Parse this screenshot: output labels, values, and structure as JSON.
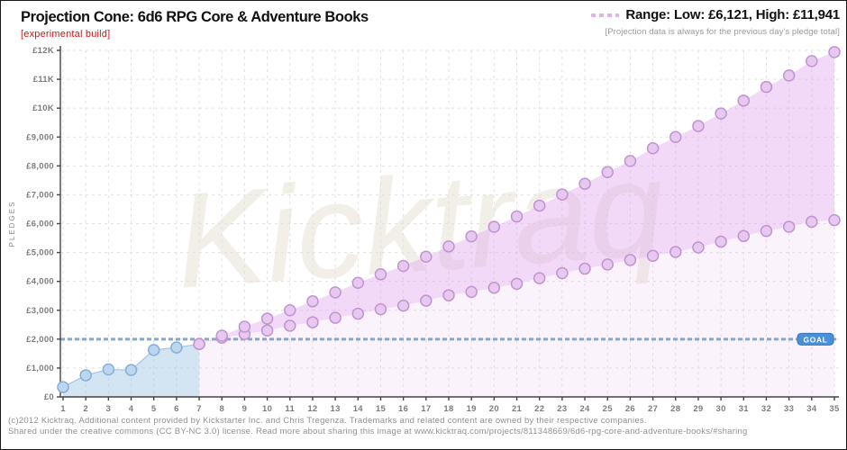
{
  "header": {
    "title": "Projection Cone: 6d6 RPG Core & Adventure Books",
    "experimental": "[experimental build]",
    "range_label": "Range: Low:  £6,121, High:  £11,941",
    "projection_note": "[Projection data is always for the previous day's pledge total]"
  },
  "watermark": "Kicktraq",
  "goal_badge_label": "GOAL",
  "footer": {
    "line1": "(c)2012 Kicktraq. Additional content provided by Kickstarter Inc. and Chris Tregenza. Trademarks and related content are owned by their respective companies.",
    "line2": "Shared under the creative commons (CC BY-NC 3.0) license. Read more about sharing this image at www.kicktraq.com/projects/811348669/6d6-rpg-core-and-adventure-books/#sharing"
  },
  "chart_data": {
    "type": "area",
    "title": "Projection Cone: 6d6 RPG Core & Adventure Books",
    "xlabel": "",
    "ylabel": "PLEDGES",
    "currency": "£",
    "goal_value": 2000,
    "range_low": 6121,
    "range_high": 11941,
    "xlim": [
      1,
      35
    ],
    "ylim": [
      0,
      12000
    ],
    "grid": true,
    "x_ticks": [
      1,
      2,
      3,
      4,
      5,
      6,
      7,
      8,
      9,
      10,
      11,
      12,
      13,
      14,
      15,
      16,
      17,
      18,
      19,
      20,
      21,
      22,
      23,
      24,
      25,
      26,
      27,
      28,
      29,
      30,
      31,
      32,
      33,
      34,
      35
    ],
    "y_ticks": [
      0,
      1000,
      2000,
      3000,
      4000,
      5000,
      6000,
      7000,
      8000,
      9000,
      10000,
      11000,
      12000
    ],
    "y_tick_labels": [
      "£0",
      "£1,000",
      "£2,000",
      "£3,000",
      "£4,000",
      "£5,000",
      "£6,000",
      "£7,000",
      "£8,000",
      "£9,000",
      "£10K",
      "£11K",
      "£12K"
    ],
    "series": [
      {
        "name": "actual-pledges",
        "days": [
          1,
          2,
          3,
          4,
          5,
          6,
          7
        ],
        "values": [
          340,
          750,
          950,
          930,
          1625,
          1710,
          1830
        ],
        "point_fill": "#bdd6ef",
        "point_stroke": "#86afd6",
        "area_fill": "rgba(150,190,225,0.42)",
        "line_stroke": "#a5c5e4"
      },
      {
        "name": "projection-high",
        "days": [
          7,
          8,
          9,
          10,
          11,
          12,
          13,
          14,
          15,
          16,
          17,
          18,
          19,
          20,
          21,
          22,
          23,
          24,
          25,
          26,
          27,
          28,
          29,
          30,
          31,
          32,
          33,
          34,
          35
        ],
        "values": [
          1830,
          2120,
          2430,
          2710,
          3000,
          3310,
          3620,
          3950,
          4245,
          4535,
          4855,
          5210,
          5560,
          5890,
          6250,
          6625,
          7010,
          7380,
          7785,
          8170,
          8610,
          9000,
          9380,
          9815,
          10260,
          10735,
          11130,
          11630,
          11941
        ],
        "point_fill": "#e7c9ef",
        "point_stroke": "#c193d3"
      },
      {
        "name": "projection-low",
        "days": [
          7,
          8,
          9,
          10,
          11,
          12,
          13,
          14,
          15,
          16,
          17,
          18,
          19,
          20,
          21,
          22,
          23,
          24,
          25,
          26,
          27,
          28,
          29,
          30,
          31,
          32,
          33,
          34,
          35
        ],
        "values": [
          1830,
          2050,
          2175,
          2300,
          2465,
          2585,
          2740,
          2880,
          3035,
          3160,
          3330,
          3520,
          3635,
          3780,
          3915,
          4110,
          4285,
          4440,
          4585,
          4740,
          4885,
          5020,
          5175,
          5375,
          5570,
          5745,
          5890,
          6065,
          6121
        ],
        "point_fill": "#e7c9ef",
        "point_stroke": "#c193d3"
      }
    ],
    "cone_band_fill": "rgba(223,165,235,0.42)",
    "cone_under_fill": "rgba(231,190,240,0.18)",
    "goal_line_color": "#7fa8d9",
    "goal_badge_fill": "#4a90d9",
    "grid_color": "#e1e1e1",
    "axis_color": "#444444",
    "tick_label_color": "#7d7d7d"
  }
}
